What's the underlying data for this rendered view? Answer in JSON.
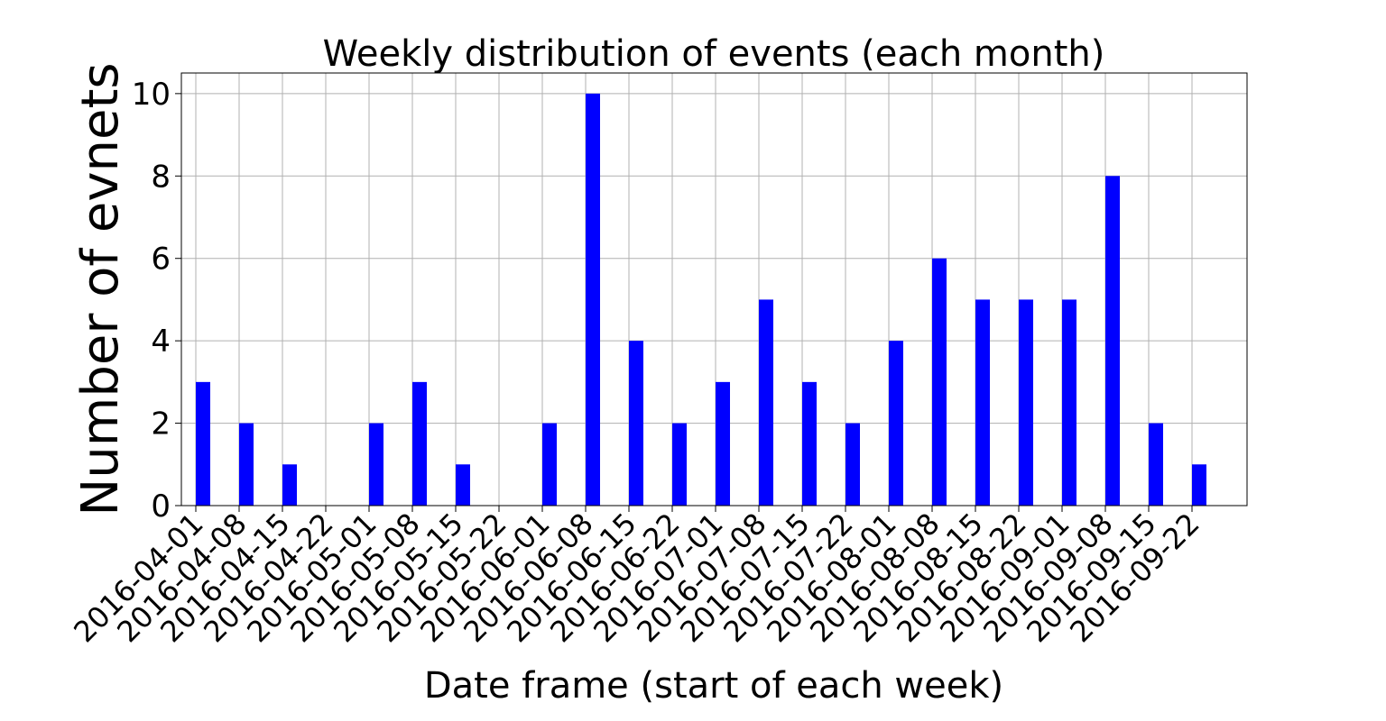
{
  "chart_data": {
    "type": "bar",
    "title": "Weekly distribution of events (each month)",
    "xlabel": "Date frame (start of each week)",
    "ylabel": "Number of evnets",
    "categories": [
      "2016-04-01",
      "2016-04-08",
      "2016-04-15",
      "2016-04-22",
      "2016-05-01",
      "2016-05-08",
      "2016-05-15",
      "2016-05-22",
      "2016-06-01",
      "2016-06-08",
      "2016-06-15",
      "2016-06-22",
      "2016-07-01",
      "2016-07-08",
      "2016-07-15",
      "2016-07-22",
      "2016-08-01",
      "2016-08-08",
      "2016-08-15",
      "2016-08-22",
      "2016-09-01",
      "2016-09-08",
      "2016-09-15",
      "2016-09-22"
    ],
    "values": [
      3,
      2,
      1,
      0,
      2,
      3,
      1,
      0,
      2,
      10,
      4,
      2,
      3,
      5,
      3,
      2,
      4,
      6,
      5,
      5,
      5,
      8,
      2,
      1
    ],
    "ylim": [
      0,
      10.5
    ],
    "yticks": [
      0,
      2,
      4,
      6,
      8,
      10
    ],
    "grid": true,
    "bar_color": "#0000ff"
  }
}
